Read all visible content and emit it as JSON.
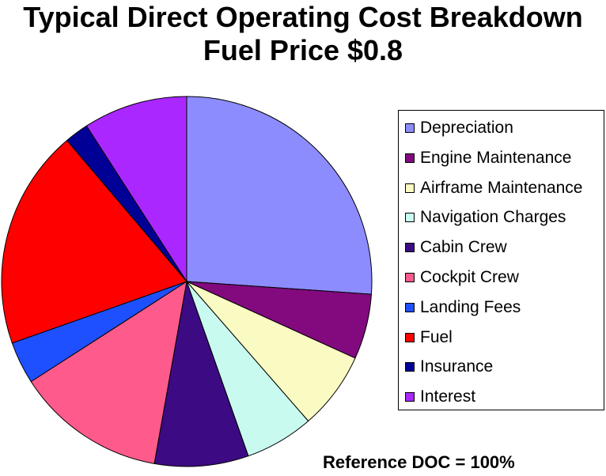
{
  "chart_data": {
    "type": "pie",
    "title": "Typical Direct Operating Cost Breakdown",
    "subtitle": "Fuel Price $0.8",
    "series": [
      {
        "name": "Depreciation",
        "value": 26.1,
        "color": "#8C8CFF"
      },
      {
        "name": "Engine Maintenance",
        "value": 5.7,
        "color": "#820A7E"
      },
      {
        "name": "Airframe Maintenance",
        "value": 6.8,
        "color": "#FAFAC3"
      },
      {
        "name": "Navigation Charges",
        "value": 6.0,
        "color": "#C8FAF0"
      },
      {
        "name": "Cabin Crew",
        "value": 8.2,
        "color": "#3C0A82"
      },
      {
        "name": "Cockpit Crew",
        "value": 13.1,
        "color": "#FF5A8C"
      },
      {
        "name": "Landing Fees",
        "value": 3.7,
        "color": "#1E50FF"
      },
      {
        "name": "Fuel",
        "value": 19.2,
        "color": "#FF0000"
      },
      {
        "name": "Insurance",
        "value": 2.1,
        "color": "#000096"
      },
      {
        "name": "Interest",
        "value": 9.1,
        "color": "#AA28FF"
      }
    ],
    "legend_position": "right",
    "annotation": "Reference DOC = 100%"
  }
}
